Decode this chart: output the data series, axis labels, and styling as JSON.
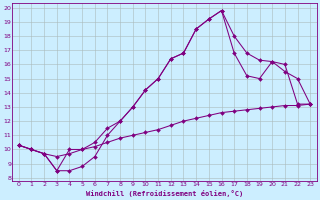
{
  "bg_color": "#cceeff",
  "line_color": "#800080",
  "grid_color": "#aabbbb",
  "xlabel": "Windchill (Refroidissement éolien,°C)",
  "xlim": [
    -0.5,
    23.5
  ],
  "ylim": [
    7.8,
    20.3
  ],
  "xticks": [
    0,
    1,
    2,
    3,
    4,
    5,
    6,
    7,
    8,
    9,
    10,
    11,
    12,
    13,
    14,
    15,
    16,
    17,
    18,
    19,
    20,
    21,
    22,
    23
  ],
  "yticks": [
    8,
    9,
    10,
    11,
    12,
    13,
    14,
    15,
    16,
    17,
    18,
    19,
    20
  ],
  "line1": {
    "x": [
      0,
      1,
      2,
      3,
      4,
      5,
      6,
      7,
      8,
      9,
      10,
      11,
      12,
      13,
      14,
      15,
      16,
      17,
      18,
      19,
      20,
      21,
      22,
      23
    ],
    "y": [
      10.3,
      10.0,
      9.7,
      9.5,
      9.7,
      10.0,
      10.2,
      10.5,
      10.8,
      11.0,
      11.2,
      11.4,
      11.7,
      12.0,
      12.2,
      12.4,
      12.6,
      12.7,
      12.8,
      12.9,
      13.0,
      13.1,
      13.1,
      13.2
    ]
  },
  "line2": {
    "x": [
      0,
      1,
      2,
      3,
      4,
      5,
      6,
      7,
      8,
      9,
      10,
      11,
      12,
      13,
      14,
      15,
      16,
      17,
      18,
      19,
      20,
      21,
      22,
      23
    ],
    "y": [
      10.3,
      10.0,
      9.7,
      8.5,
      8.5,
      8.8,
      9.5,
      11.0,
      12.0,
      13.0,
      14.2,
      15.0,
      16.4,
      16.8,
      18.5,
      19.2,
      19.8,
      18.0,
      16.8,
      16.3,
      16.2,
      15.5,
      15.0,
      13.2
    ]
  },
  "line3": {
    "x": [
      0,
      1,
      2,
      3,
      4,
      5,
      6,
      7,
      8,
      9,
      10,
      11,
      12,
      13,
      14,
      15,
      16,
      17,
      18,
      19,
      20,
      21,
      22,
      23
    ],
    "y": [
      10.3,
      10.0,
      9.7,
      8.5,
      10.0,
      10.0,
      10.5,
      11.5,
      12.0,
      13.0,
      14.2,
      15.0,
      16.4,
      16.8,
      18.5,
      19.2,
      19.8,
      16.8,
      15.2,
      15.0,
      16.2,
      16.0,
      13.2,
      13.2
    ]
  }
}
